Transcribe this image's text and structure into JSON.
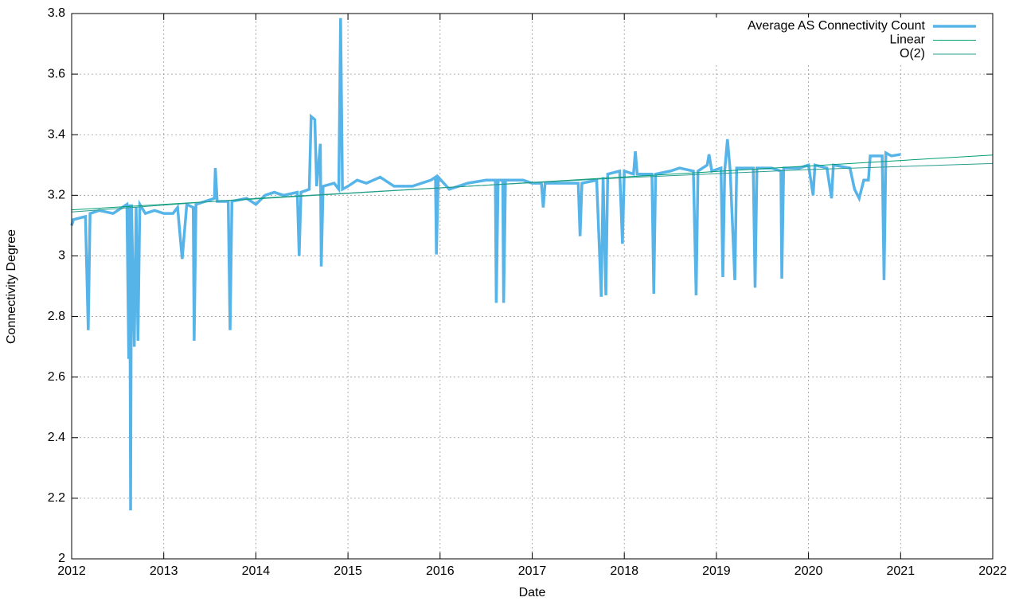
{
  "chart_data": {
    "type": "line",
    "xlabel": "Date",
    "ylabel": "Connectivity Degree",
    "xlim": [
      2012,
      2022
    ],
    "xticks": [
      2012,
      2013,
      2014,
      2015,
      2016,
      2017,
      2018,
      2019,
      2020,
      2021,
      2022
    ],
    "ylim": [
      2,
      3.8
    ],
    "yticks": [
      2,
      2.2,
      2.4,
      2.6,
      2.8,
      3,
      3.2,
      3.4,
      3.6,
      3.8
    ],
    "grid": true,
    "legend": "top-right",
    "series": [
      {
        "name": "Average AS Connectivity Count",
        "color": "#56b4e9",
        "width": 3.5,
        "x": [
          2012.0,
          2012.02,
          2012.15,
          2012.18,
          2012.2,
          2012.3,
          2012.45,
          2012.55,
          2012.6,
          2012.62,
          2012.63,
          2012.64,
          2012.65,
          2012.68,
          2012.7,
          2012.72,
          2012.74,
          2012.8,
          2012.9,
          2013.0,
          2013.1,
          2013.15,
          2013.2,
          2013.25,
          2013.32,
          2013.33,
          2013.35,
          2013.45,
          2013.55,
          2013.56,
          2013.58,
          2013.7,
          2013.72,
          2013.74,
          2013.9,
          2014.0,
          2014.1,
          2014.2,
          2014.3,
          2014.45,
          2014.47,
          2014.49,
          2014.58,
          2014.6,
          2014.64,
          2014.66,
          2014.7,
          2014.71,
          2014.73,
          2014.85,
          2014.9,
          2014.92,
          2014.94,
          2015.0,
          2015.1,
          2015.2,
          2015.35,
          2015.5,
          2015.7,
          2015.9,
          2015.95,
          2015.96,
          2015.98,
          2016.1,
          2016.3,
          2016.5,
          2016.6,
          2016.61,
          2016.63,
          2016.68,
          2016.69,
          2016.71,
          2016.9,
          2017.0,
          2017.1,
          2017.12,
          2017.14,
          2017.3,
          2017.5,
          2017.52,
          2017.54,
          2017.7,
          2017.75,
          2017.77,
          2017.8,
          2017.82,
          2017.95,
          2017.98,
          2018.0,
          2018.1,
          2018.12,
          2018.14,
          2018.3,
          2018.32,
          2018.34,
          2018.5,
          2018.6,
          2018.75,
          2018.78,
          2018.8,
          2018.9,
          2018.92,
          2018.95,
          2019.05,
          2019.07,
          2019.09,
          2019.12,
          2019.15,
          2019.2,
          2019.22,
          2019.4,
          2019.42,
          2019.44,
          2019.6,
          2019.7,
          2019.71,
          2019.73,
          2019.9,
          2020.0,
          2020.05,
          2020.07,
          2020.2,
          2020.25,
          2020.27,
          2020.45,
          2020.5,
          2020.55,
          2020.6,
          2020.65,
          2020.67,
          2020.8,
          2020.82,
          2020.84,
          2020.9,
          2021.0
        ],
        "values": [
          3.1,
          3.12,
          3.13,
          2.755,
          3.14,
          3.15,
          3.14,
          3.16,
          3.17,
          2.66,
          3.17,
          2.16,
          3.17,
          2.7,
          3.16,
          2.72,
          3.17,
          3.14,
          3.15,
          3.14,
          3.14,
          3.16,
          2.99,
          3.17,
          3.16,
          2.72,
          3.17,
          3.18,
          3.19,
          3.29,
          3.18,
          3.18,
          2.755,
          3.18,
          3.19,
          3.17,
          3.2,
          3.21,
          3.2,
          3.21,
          3.0,
          3.21,
          3.22,
          3.46,
          3.45,
          3.23,
          3.37,
          2.965,
          3.23,
          3.24,
          3.22,
          3.785,
          3.22,
          3.23,
          3.25,
          3.24,
          3.26,
          3.23,
          3.23,
          3.25,
          3.26,
          3.005,
          3.26,
          3.22,
          3.24,
          3.25,
          3.25,
          2.845,
          3.25,
          3.25,
          2.845,
          3.25,
          3.25,
          3.24,
          3.24,
          3.16,
          3.24,
          3.24,
          3.24,
          3.065,
          3.24,
          3.25,
          2.865,
          3.26,
          2.87,
          3.27,
          3.28,
          3.04,
          3.28,
          3.27,
          3.345,
          3.27,
          3.27,
          2.875,
          3.27,
          3.28,
          3.29,
          3.28,
          2.87,
          3.28,
          3.3,
          3.335,
          3.28,
          3.29,
          2.93,
          3.28,
          3.385,
          3.28,
          2.92,
          3.29,
          3.29,
          2.895,
          3.29,
          3.29,
          3.28,
          2.925,
          3.29,
          3.29,
          3.3,
          3.2,
          3.3,
          3.29,
          3.19,
          3.3,
          3.29,
          3.22,
          3.19,
          3.25,
          3.25,
          3.33,
          3.33,
          2.92,
          3.34,
          3.33,
          3.335
        ]
      },
      {
        "name": "Linear",
        "color": "#009e73",
        "width": 1,
        "x": [
          2012,
          2022
        ],
        "values": [
          3.152,
          3.333
        ]
      },
      {
        "name": "O(2)",
        "color": "#2a9d8f",
        "width": 1,
        "x": [
          2012,
          2014,
          2016,
          2018,
          2020,
          2022
        ],
        "values": [
          3.145,
          3.19,
          3.225,
          3.258,
          3.285,
          3.305
        ]
      }
    ]
  }
}
